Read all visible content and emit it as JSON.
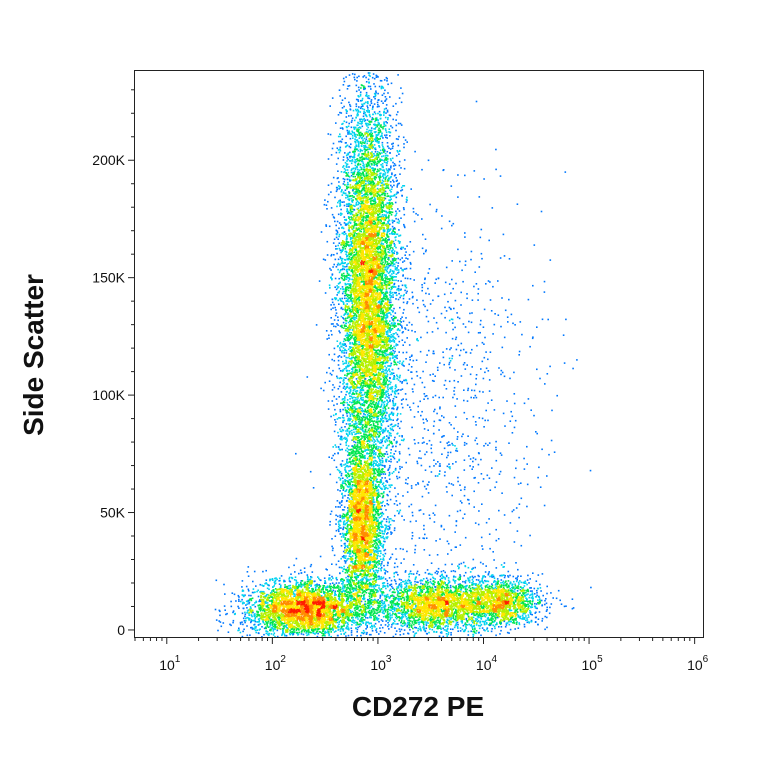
{
  "chart_data": {
    "type": "scatter",
    "subtype": "flow-cytometry density dot plot",
    "xlabel": "CD272 PE",
    "ylabel": "Side Scatter",
    "x_scale": "log",
    "x_range": [
      5,
      1200000
    ],
    "y_scale": "linear",
    "y_range": [
      -3000,
      238000
    ],
    "grid": false,
    "x_ticks": [
      {
        "base": "10",
        "exp": "1",
        "value": 10
      },
      {
        "base": "10",
        "exp": "2",
        "value": 100
      },
      {
        "base": "10",
        "exp": "3",
        "value": 1000
      },
      {
        "base": "10",
        "exp": "4",
        "value": 10000
      },
      {
        "base": "10",
        "exp": "5",
        "value": 100000
      },
      {
        "base": "10",
        "exp": "6",
        "value": 1000000
      }
    ],
    "y_ticks": [
      {
        "label": "0",
        "value": 0
      },
      {
        "label": "50K",
        "value": 50000
      },
      {
        "label": "100K",
        "value": 100000
      },
      {
        "label": "150K",
        "value": 150000
      },
      {
        "label": "200K",
        "value": 200000
      }
    ],
    "density_colors": [
      "#0000ff",
      "#0078ff",
      "#00d2f0",
      "#00e650",
      "#b4f000",
      "#ffe600",
      "#ff8c00",
      "#ff1e00"
    ],
    "populations": [
      {
        "x_center": 800,
        "y_center": 145000,
        "x_spread_log": 0.14,
        "y_spread": 42000,
        "count": 9000
      },
      {
        "x_center": 700,
        "y_center": 45000,
        "x_spread_log": 0.1,
        "y_spread": 18000,
        "count": 3200
      },
      {
        "x_center": 200,
        "y_center": 9000,
        "x_spread_log": 0.28,
        "y_spread": 6000,
        "count": 3800
      },
      {
        "x_center": 3500,
        "y_center": 11000,
        "x_spread_log": 0.28,
        "y_spread": 6000,
        "count": 2600
      },
      {
        "x_center": 15000,
        "y_center": 12000,
        "x_spread_log": 0.18,
        "y_spread": 5000,
        "count": 1400
      },
      {
        "x_center": 4000,
        "y_center": 95000,
        "x_spread_log": 0.45,
        "y_spread": 45000,
        "count": 900
      }
    ]
  }
}
